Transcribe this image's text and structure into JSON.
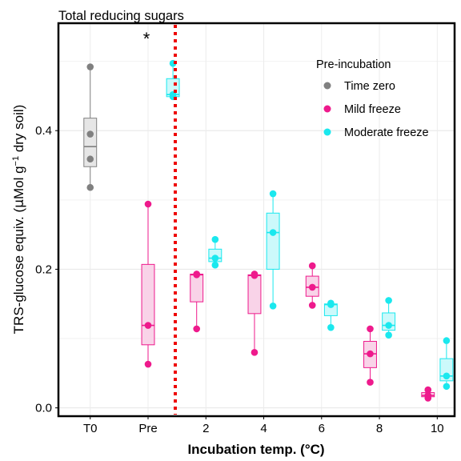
{
  "chart_data": {
    "type": "boxplot",
    "title": "Total reducing sugars",
    "xlabel": "Incubation temp. (°C)",
    "ylabel": {
      "prefix": "TRS-glucose equiv. (",
      "mu": "µ",
      "mol": "Mol g",
      "exp": "−1",
      "suffix": " dry soil)"
    },
    "ylim": [
      -0.012,
      0.555
    ],
    "yticks": [
      0.0,
      0.2,
      0.4
    ],
    "ytick_labels": [
      "0.0",
      "0.2",
      "0.4"
    ],
    "categories": [
      "T0",
      "Pre",
      "2",
      "4",
      "6",
      "8",
      "10"
    ],
    "grid": true,
    "significance_marker": {
      "category": "Pre",
      "text": "*"
    },
    "divider": {
      "between": [
        "Pre",
        "2"
      ],
      "style": "dotted",
      "color": "#ee0000"
    },
    "legend": {
      "title": "Pre-incubation",
      "position": "top-right",
      "entries": [
        {
          "key": "time_zero",
          "label": "Time zero"
        },
        {
          "key": "mild",
          "label": "Mild freeze"
        },
        {
          "key": "moderate",
          "label": "Moderate freeze"
        }
      ]
    },
    "series": {
      "time_zero": {
        "label": "Time zero",
        "color": "#808080",
        "fill": "#e6e6e6"
      },
      "mild": {
        "label": "Mild freeze",
        "color": "#ee1a8c",
        "fill": "#f9d3e8"
      },
      "moderate": {
        "label": "Moderate freeze",
        "color": "#1ae8ee",
        "fill": "#ccf9fb"
      }
    },
    "boxes": [
      {
        "category": "T0",
        "series": "time_zero",
        "offset": 0,
        "min": 0.318,
        "q1": 0.348,
        "median": 0.377,
        "q3": 0.418,
        "max": 0.492,
        "points": [
          0.492,
          0.395,
          0.359,
          0.318
        ]
      },
      {
        "category": "Pre",
        "series": "mild",
        "offset": 0,
        "min": 0.063,
        "q1": 0.091,
        "median": 0.119,
        "q3": 0.207,
        "max": 0.294,
        "points": [
          0.294,
          0.119,
          0.063
        ]
      },
      {
        "category": "Pre",
        "series": "moderate",
        "offset": 0.43,
        "min": 0.449,
        "q1": 0.449,
        "median": 0.452,
        "q3": 0.475,
        "max": 0.497,
        "points": [
          0.497,
          0.452,
          0.449
        ]
      },
      {
        "category": "2",
        "series": "mild",
        "offset": -0.16,
        "min": 0.114,
        "q1": 0.153,
        "median": 0.192,
        "q3": 0.193,
        "max": 0.193,
        "points": [
          0.193,
          0.192,
          0.114
        ]
      },
      {
        "category": "2",
        "series": "moderate",
        "offset": 0.16,
        "min": 0.206,
        "q1": 0.211,
        "median": 0.216,
        "q3": 0.229,
        "max": 0.243,
        "points": [
          0.243,
          0.216,
          0.206
        ]
      },
      {
        "category": "4",
        "series": "mild",
        "offset": -0.16,
        "min": 0.08,
        "q1": 0.136,
        "median": 0.191,
        "q3": 0.192,
        "max": 0.193,
        "points": [
          0.193,
          0.191,
          0.08
        ]
      },
      {
        "category": "4",
        "series": "moderate",
        "offset": 0.16,
        "min": 0.147,
        "q1": 0.2,
        "median": 0.253,
        "q3": 0.281,
        "max": 0.309,
        "points": [
          0.309,
          0.253,
          0.147
        ]
      },
      {
        "category": "6",
        "series": "mild",
        "offset": -0.16,
        "min": 0.148,
        "q1": 0.161,
        "median": 0.174,
        "q3": 0.19,
        "max": 0.205,
        "points": [
          0.205,
          0.174,
          0.148
        ]
      },
      {
        "category": "6",
        "series": "moderate",
        "offset": 0.16,
        "min": 0.116,
        "q1": 0.133,
        "median": 0.149,
        "q3": 0.15,
        "max": 0.151,
        "points": [
          0.151,
          0.149,
          0.116
        ]
      },
      {
        "category": "8",
        "series": "mild",
        "offset": -0.16,
        "min": 0.037,
        "q1": 0.058,
        "median": 0.078,
        "q3": 0.096,
        "max": 0.114,
        "points": [
          0.114,
          0.078,
          0.037
        ]
      },
      {
        "category": "8",
        "series": "moderate",
        "offset": 0.16,
        "min": 0.105,
        "q1": 0.112,
        "median": 0.119,
        "q3": 0.137,
        "max": 0.155,
        "points": [
          0.155,
          0.119,
          0.105
        ]
      },
      {
        "category": "10",
        "series": "mild",
        "offset": -0.16,
        "min": 0.014,
        "q1": 0.016,
        "median": 0.018,
        "q3": 0.022,
        "max": 0.026,
        "points": [
          0.026,
          0.018,
          0.014
        ]
      },
      {
        "category": "10",
        "series": "moderate",
        "offset": 0.16,
        "min": 0.031,
        "q1": 0.039,
        "median": 0.046,
        "q3": 0.071,
        "max": 0.097,
        "points": [
          0.097,
          0.046,
          0.031
        ]
      }
    ]
  }
}
